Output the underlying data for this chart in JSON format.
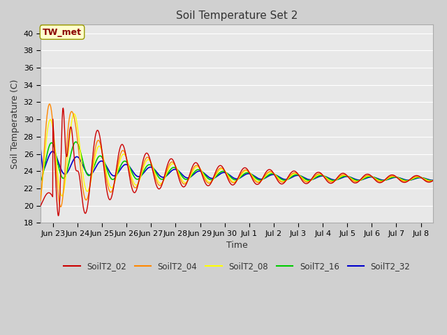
{
  "title": "Soil Temperature Set 2",
  "xlabel": "Time",
  "ylabel": "Soil Temperature (C)",
  "ylim": [
    18,
    41
  ],
  "yticks": [
    18,
    20,
    22,
    24,
    26,
    28,
    30,
    32,
    34,
    36,
    38,
    40
  ],
  "fig_bg": "#d0d0d0",
  "plot_bg": "#e8e8e8",
  "grid_color": "#ffffff",
  "annotation_text": "TW_met",
  "series_colors": {
    "SoilT2_02": "#cc0000",
    "SoilT2_04": "#ff8800",
    "SoilT2_08": "#ffff00",
    "SoilT2_16": "#00cc00",
    "SoilT2_32": "#0000cc"
  },
  "legend_labels": [
    "SoilT2_02",
    "SoilT2_04",
    "SoilT2_08",
    "SoilT2_16",
    "SoilT2_32"
  ],
  "xtick_labels": [
    "Jun 23",
    "Jun 24",
    "Jun 25",
    "Jun 26",
    "Jun 27",
    "Jun 28",
    "Jun 29",
    "Jun 30",
    "Jul 1",
    "Jul 2",
    "Jul 3",
    "Jul 4",
    "Jul 5",
    "Jul 6",
    "Jul 7",
    "Jul 8"
  ],
  "num_days": 16
}
